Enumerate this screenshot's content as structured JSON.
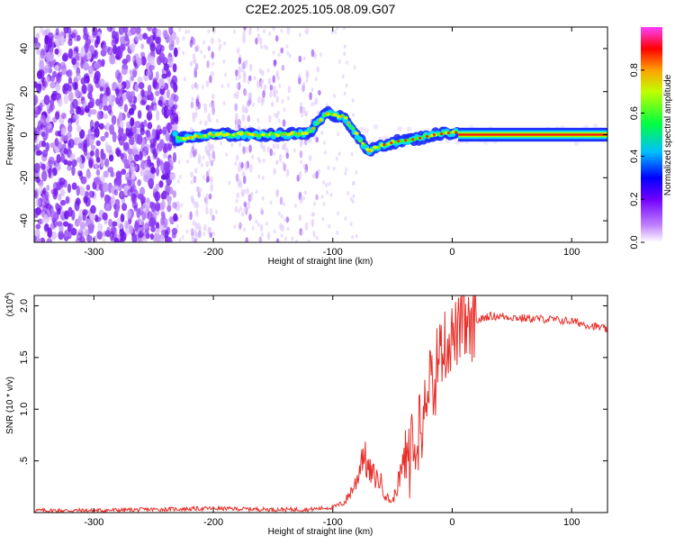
{
  "figure_title": "C2E2.2025.105.08.09.G07",
  "chart_data": [
    {
      "type": "heatmap",
      "title": "",
      "xlabel": "Height of straight line (km)",
      "ylabel": "Frequency (Hz)",
      "xlim": [
        -350,
        130
      ],
      "ylim": [
        -50,
        50
      ],
      "xticks": [
        -300,
        -200,
        -100,
        0,
        100
      ],
      "yticks": [
        -40,
        -20,
        0,
        20,
        40
      ],
      "grid": false,
      "colorbar": {
        "label": "Normalized spectral amplitude",
        "range": [
          0,
          1
        ],
        "ticks": [
          0.0,
          0.2,
          0.4,
          0.6,
          0.8
        ],
        "colormap": [
          "#ffffff",
          "#a020f0",
          "#0000ff",
          "#00ffff",
          "#00ff00",
          "#ffff00",
          "#ff0000",
          "#ff00ff"
        ]
      },
      "ridge": {
        "description_points": [
          {
            "x": -230,
            "y": -2
          },
          {
            "x": -200,
            "y": 0
          },
          {
            "x": -170,
            "y": 0
          },
          {
            "x": -140,
            "y": 0
          },
          {
            "x": -120,
            "y": 1
          },
          {
            "x": -105,
            "y": 10
          },
          {
            "x": -90,
            "y": 8
          },
          {
            "x": -80,
            "y": 0
          },
          {
            "x": -70,
            "y": -8
          },
          {
            "x": -60,
            "y": -5
          },
          {
            "x": -45,
            "y": -3
          },
          {
            "x": -30,
            "y": -2
          },
          {
            "x": -15,
            "y": 0
          },
          {
            "x": 0,
            "y": 1
          },
          {
            "x": 130,
            "y": 0
          }
        ]
      }
    },
    {
      "type": "line",
      "title": "",
      "xlabel": "Height of straight line (km)",
      "ylabel": "SNR (10 * v/v)",
      "y_multiplier": "(x10^4)",
      "xlim": [
        -350,
        130
      ],
      "ylim": [
        0,
        2.1
      ],
      "xticks": [
        -300,
        -200,
        -100,
        0,
        100
      ],
      "yticks": [
        0.5,
        1.0,
        1.5,
        2.0
      ],
      "color": "#e8302a",
      "series": [
        {
          "x": [
            -350,
            -300,
            -250,
            -200,
            -150,
            -120,
            -100,
            -90,
            -80,
            -75,
            -70,
            -65,
            -60,
            -55,
            -50,
            -40,
            -30,
            -20,
            -10,
            0,
            10,
            20,
            30,
            40,
            60,
            80,
            100,
            120,
            130
          ],
          "values": [
            0.02,
            0.02,
            0.03,
            0.04,
            0.03,
            0.03,
            0.05,
            0.1,
            0.3,
            0.6,
            0.4,
            0.35,
            0.3,
            0.15,
            0.1,
            0.5,
            0.9,
            1.3,
            1.55,
            1.7,
            1.8,
            1.85,
            1.9,
            1.9,
            1.88,
            1.87,
            1.85,
            1.8,
            1.77
          ]
        }
      ]
    }
  ]
}
